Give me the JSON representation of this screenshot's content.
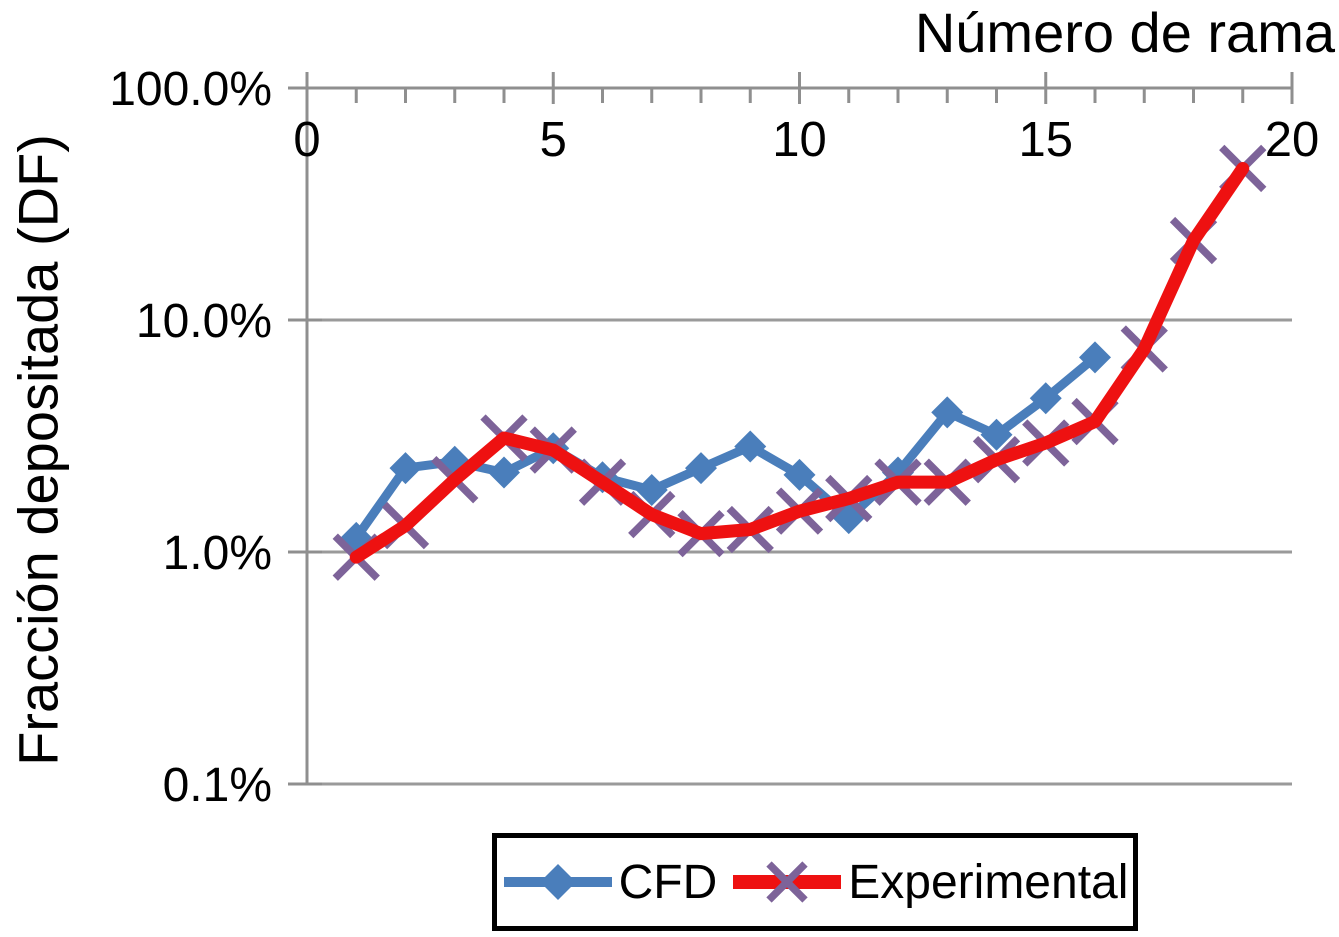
{
  "chart_data": {
    "type": "line",
    "title": "",
    "xlabel": "Número de rama",
    "ylabel": "Fracción depositada (DF)",
    "x_axis": {
      "min": 0,
      "max": 20,
      "major_ticks": [
        0,
        5,
        10,
        15,
        20
      ],
      "major_tick_labels": [
        "0",
        "5",
        "10",
        "15",
        "20"
      ],
      "minor_tick_step": 1,
      "position": "top"
    },
    "y_axis": {
      "scale": "log",
      "ticks": [
        {
          "label": "100.0%",
          "value": 100
        },
        {
          "label": "10.0%",
          "value": 10
        },
        {
          "label": "1.0%",
          "value": 1
        },
        {
          "label": "0.1%",
          "value": 0.1
        }
      ]
    },
    "grid": "horizontal-only",
    "legend_position": "bottom",
    "series": [
      {
        "name": "CFD",
        "color": "#4a7ebb",
        "marker": "diamond",
        "marker_color": "#4a7ebb",
        "line_width": 9,
        "marker_size": 16,
        "x": [
          1,
          2,
          3,
          4,
          5,
          6,
          7,
          8,
          9,
          10,
          11,
          12,
          13,
          14,
          15,
          16
        ],
        "values": [
          1.15,
          2.3,
          2.45,
          2.2,
          2.8,
          2.1,
          1.85,
          2.3,
          2.85,
          2.15,
          1.4,
          2.2,
          4.0,
          3.2,
          4.6,
          6.9
        ]
      },
      {
        "name": "Experimental",
        "color": "#ee1111",
        "marker": "x",
        "marker_color": "#7d6399",
        "line_width": 13,
        "marker_size": 21,
        "x": [
          1,
          2,
          3,
          4,
          5,
          6,
          7,
          8,
          9,
          10,
          11,
          12,
          13,
          14,
          15,
          16,
          17,
          18,
          19
        ],
        "values": [
          0.95,
          1.3,
          2.05,
          3.1,
          2.75,
          2.0,
          1.45,
          1.2,
          1.25,
          1.5,
          1.7,
          2.0,
          2.0,
          2.5,
          2.95,
          3.65,
          7.5,
          22,
          45
        ]
      }
    ],
    "colors": {
      "axis": "#8f8f8f",
      "gridline": "#9a9a9a",
      "text": "#000000",
      "background": "#ffffff"
    }
  }
}
